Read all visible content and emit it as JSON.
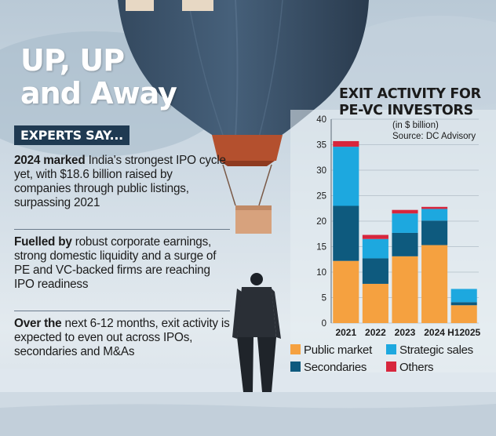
{
  "headline": {
    "line1": "UP, UP",
    "line2": "and Away"
  },
  "experts_label": "EXPERTS SAY...",
  "paragraphs": [
    {
      "lead": "2024 marked",
      "text": " India's strongest IPO cycle yet, with $18.6 billion raised by companies through public listings, surpassing 2021"
    },
    {
      "lead": "Fuelled by",
      "text": " robust corporate earnings, strong domestic liquidity and a surge of PE and VC-backed firms are reaching IPO readiness"
    },
    {
      "lead": "Over the",
      "text": " next 6-12 months, exit activity is expected to even out across IPOs, secondaries and M&As"
    }
  ],
  "chart_data": {
    "type": "bar",
    "stacked": true,
    "title_lines": [
      "EXIT ACTIVITY FOR",
      "PE-VC INVESTORS"
    ],
    "unit": "(in $ billion)",
    "source": "Source: DC Advisory",
    "categories": [
      "2021",
      "2022",
      "2023",
      "2024",
      "H12025"
    ],
    "series": [
      {
        "name": "Public market",
        "color": "#f5a140",
        "values": [
          12.2,
          7.7,
          13.1,
          15.3,
          3.5
        ]
      },
      {
        "name": "Secondaries",
        "color": "#0e5a7e",
        "values": [
          10.8,
          5.0,
          4.6,
          4.8,
          0.6
        ]
      },
      {
        "name": "Strategic sales",
        "color": "#1da8df",
        "values": [
          11.6,
          3.8,
          3.8,
          2.3,
          2.6
        ]
      },
      {
        "name": "Others",
        "color": "#d7263d",
        "values": [
          1.1,
          0.8,
          0.7,
          0.4,
          0.0
        ]
      }
    ],
    "yticks": [
      0,
      5,
      10,
      15,
      20,
      25,
      30,
      35,
      40
    ],
    "ylim": [
      0,
      40
    ],
    "grid": true
  }
}
